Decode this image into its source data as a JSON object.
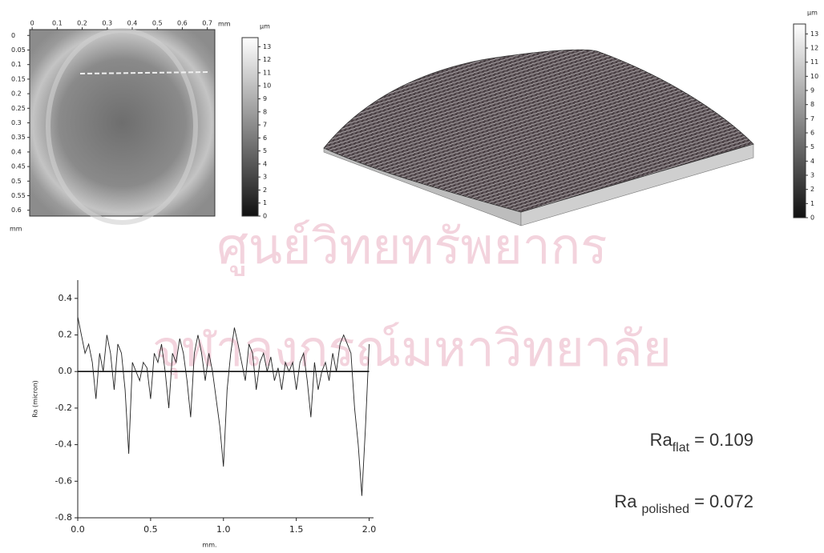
{
  "chart_data": [
    {
      "type": "heatmap",
      "x_unit": "mm",
      "y_unit": "mm",
      "xlim": [
        -0.01,
        0.73
      ],
      "ylim": [
        -0.02,
        0.62
      ],
      "xticks": [
        0,
        0.1,
        0.2,
        0.3,
        0.4,
        0.5,
        0.6,
        0.7
      ],
      "yticks": [
        0,
        0.05,
        0.1,
        0.15,
        0.2,
        0.25,
        0.3,
        0.35,
        0.4,
        0.45,
        0.5,
        0.55,
        0.6
      ],
      "colorbar": {
        "label": "µm",
        "lim": [
          0,
          13.7
        ],
        "ticks": [
          0,
          1,
          2,
          3,
          4,
          5,
          6,
          7,
          8,
          9,
          10,
          11,
          12,
          13
        ]
      }
    },
    {
      "type": "surface3d",
      "colorbar": {
        "label": "µm",
        "lim": [
          0,
          13.7
        ],
        "ticks": [
          0,
          1,
          2,
          3,
          4,
          5,
          6,
          7,
          8,
          9,
          10,
          11,
          12,
          13
        ]
      }
    },
    {
      "type": "line",
      "xlabel": "mm.",
      "ylabel": "Ra (micron)",
      "color": "#222222",
      "xlim": [
        0,
        2.03
      ],
      "ylim": [
        -0.8,
        0.5
      ],
      "xticks": [
        {
          "value": 0,
          "label": "0.0"
        },
        0.5,
        {
          "value": 1,
          "label": "1.0"
        },
        1.5,
        {
          "value": 2,
          "label": "2.0"
        }
      ],
      "yticks": [
        -0.8,
        -0.6,
        -0.4,
        -0.2,
        {
          "value": 0,
          "label": "0.0"
        },
        0.2,
        0.4
      ],
      "x": [
        0,
        0.025,
        0.05,
        0.075,
        0.1,
        0.125,
        0.15,
        0.175,
        0.2,
        0.225,
        0.25,
        0.275,
        0.3,
        0.325,
        0.35,
        0.375,
        0.4,
        0.425,
        0.45,
        0.475,
        0.5,
        0.525,
        0.55,
        0.575,
        0.6,
        0.625,
        0.65,
        0.675,
        0.7,
        0.725,
        0.75,
        0.775,
        0.8,
        0.825,
        0.85,
        0.875,
        0.9,
        0.925,
        0.95,
        0.975,
        1.0,
        1.025,
        1.05,
        1.075,
        1.1,
        1.125,
        1.15,
        1.175,
        1.2,
        1.225,
        1.25,
        1.275,
        1.3,
        1.325,
        1.35,
        1.375,
        1.4,
        1.425,
        1.45,
        1.475,
        1.5,
        1.525,
        1.55,
        1.575,
        1.6,
        1.625,
        1.65,
        1.675,
        1.7,
        1.725,
        1.75,
        1.775,
        1.8,
        1.825,
        1.85,
        1.875,
        1.9,
        1.925,
        1.95,
        1.975,
        2.0
      ],
      "values": [
        0.3,
        0.2,
        0.1,
        0.15,
        0.05,
        -0.15,
        0.1,
        0.0,
        0.2,
        0.1,
        -0.1,
        0.15,
        0.1,
        -0.1,
        -0.45,
        0.05,
        0.0,
        -0.05,
        0.05,
        0.02,
        -0.15,
        0.1,
        0.05,
        0.15,
        0.0,
        -0.2,
        0.1,
        0.05,
        0.18,
        0.1,
        -0.05,
        -0.25,
        0.1,
        0.2,
        0.1,
        -0.05,
        0.1,
        0.0,
        -0.15,
        -0.3,
        -0.52,
        -0.1,
        0.1,
        0.24,
        0.15,
        0.05,
        -0.05,
        0.15,
        0.1,
        -0.1,
        0.05,
        0.1,
        0.0,
        0.08,
        -0.05,
        0.02,
        -0.1,
        0.05,
        0.0,
        0.05,
        -0.1,
        0.05,
        0.1,
        -0.05,
        -0.25,
        0.05,
        -0.1,
        0.0,
        0.05,
        -0.05,
        0.1,
        0.0,
        0.15,
        0.2,
        0.15,
        0.1,
        -0.2,
        -0.4,
        -0.68,
        -0.3,
        0.15
      ]
    }
  ],
  "equations": [
    {
      "symbol": "Ra",
      "subscript": "flat",
      "relation": "=",
      "value": 0.109
    },
    {
      "symbol": "Ra",
      "subscript": "polished",
      "relation": "=",
      "value": 0.072
    }
  ],
  "watermark": [
    "ศูนย์วิทยทรัพยากร",
    "จุฬาลงกรณ์มหาวิทยาลัย"
  ]
}
